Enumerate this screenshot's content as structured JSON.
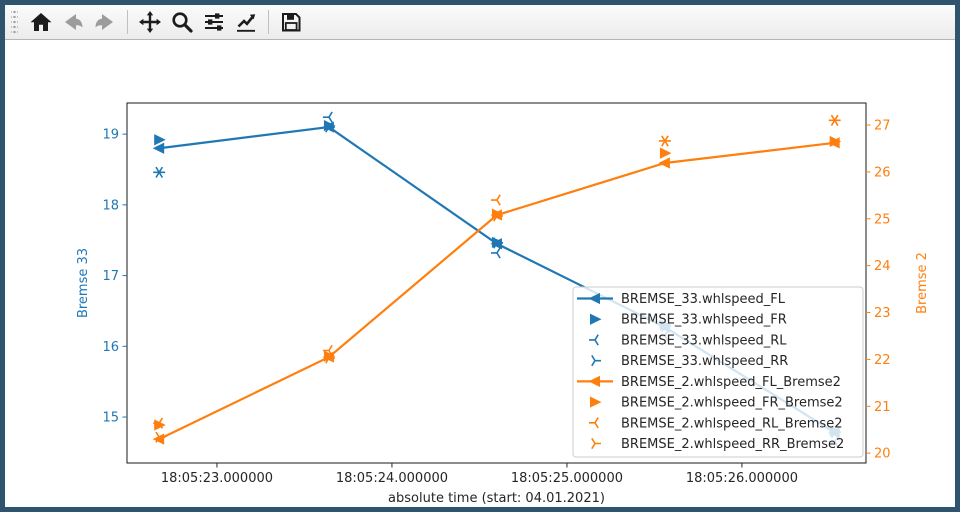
{
  "window": {
    "title": "Figure",
    "border_color": "#2e5470",
    "background": "#ffffff"
  },
  "toolbar": {
    "buttons": [
      {
        "id": "home",
        "icon": "home-icon",
        "enabled": true
      },
      {
        "id": "back",
        "icon": "arrow-left-icon",
        "enabled": false
      },
      {
        "id": "forward",
        "icon": "arrow-right-icon",
        "enabled": false
      },
      {
        "id": "pan",
        "icon": "move-arrows-icon",
        "enabled": true
      },
      {
        "id": "zoom",
        "icon": "magnifier-icon",
        "enabled": true
      },
      {
        "id": "configure-subplots",
        "icon": "sliders-icon",
        "enabled": true
      },
      {
        "id": "edit-parameters",
        "icon": "chart-line-icon",
        "enabled": true
      },
      {
        "id": "save",
        "icon": "floppy-disk-icon",
        "enabled": true
      }
    ]
  },
  "chart_data": {
    "type": "line",
    "title": "",
    "xlabel": "absolute time (start: 04.01.2021)",
    "x_axis": {
      "lim": [
        22.486,
        26.709
      ],
      "ticks": [
        {
          "value": 23,
          "label": "18:05:23.000000"
        },
        {
          "value": 24,
          "label": "18:05:24.000000"
        },
        {
          "value": 25,
          "label": "18:05:25.000000"
        },
        {
          "value": 26,
          "label": "18:05:26.000000"
        }
      ],
      "tick_color": "#262626"
    },
    "left_axis": {
      "label": "Bremse 33",
      "color": "#1f77b4",
      "ticks": [
        15,
        16,
        17,
        18,
        19
      ],
      "lim": [
        14.35,
        19.44
      ]
    },
    "right_axis": {
      "label": "Bremse 2",
      "color": "#ff7f0e",
      "ticks": [
        20,
        21,
        22,
        23,
        24,
        25,
        26,
        27
      ],
      "lim": [
        19.79,
        27.47
      ]
    },
    "x": [
      22.67,
      23.64,
      24.6,
      25.56,
      26.53
    ],
    "series": [
      {
        "name": "BREMSE_33.whlspeed_FL",
        "axis": "left",
        "color": "#1f77b4",
        "marker": "triangle-left",
        "line": true,
        "values": [
          18.8,
          19.1,
          17.45,
          16.27,
          14.78
        ]
      },
      {
        "name": "BREMSE_33.whlspeed_FR",
        "axis": "left",
        "color": "#1f77b4",
        "marker": "triangle-right",
        "line": false,
        "values": [
          18.92,
          19.12,
          17.47,
          16.3,
          14.8
        ]
      },
      {
        "name": "BREMSE_33.whlspeed_RL",
        "axis": "left",
        "color": "#1f77b4",
        "marker": "tri-left",
        "line": false,
        "values": [
          18.46,
          19.24,
          17.32,
          16.15,
          14.65
        ]
      },
      {
        "name": "BREMSE_33.whlspeed_RR",
        "axis": "left",
        "color": "#1f77b4",
        "marker": "tri-right",
        "line": false,
        "values": [
          18.46,
          19.1,
          17.46,
          16.28,
          14.78
        ]
      },
      {
        "name": "BREMSE_2.whlspeed_FL_Bremse2",
        "axis": "right",
        "color": "#ff7f0e",
        "marker": "triangle-left",
        "line": true,
        "values": [
          20.3,
          22.05,
          25.08,
          26.19,
          26.62
        ]
      },
      {
        "name": "BREMSE_2.whlspeed_FR_Bremse2",
        "axis": "right",
        "color": "#ff7f0e",
        "marker": "triangle-right",
        "line": false,
        "values": [
          20.6,
          22.07,
          25.1,
          26.4,
          26.65
        ]
      },
      {
        "name": "BREMSE_2.whlspeed_RL_Bremse2",
        "axis": "right",
        "color": "#ff7f0e",
        "marker": "tri-left",
        "line": false,
        "values": [
          20.64,
          22.19,
          25.4,
          26.66,
          27.1
        ]
      },
      {
        "name": "BREMSE_2.whlspeed_RR_Bremse2",
        "axis": "right",
        "color": "#ff7f0e",
        "marker": "tri-right",
        "line": false,
        "values": [
          20.34,
          22.03,
          25.06,
          26.66,
          27.1
        ]
      }
    ],
    "legend": {
      "position": "lower-right",
      "background": "rgba(255,255,255,0.8)",
      "border_color": "#cccccc",
      "text_color": "#262626"
    },
    "grid": false
  }
}
